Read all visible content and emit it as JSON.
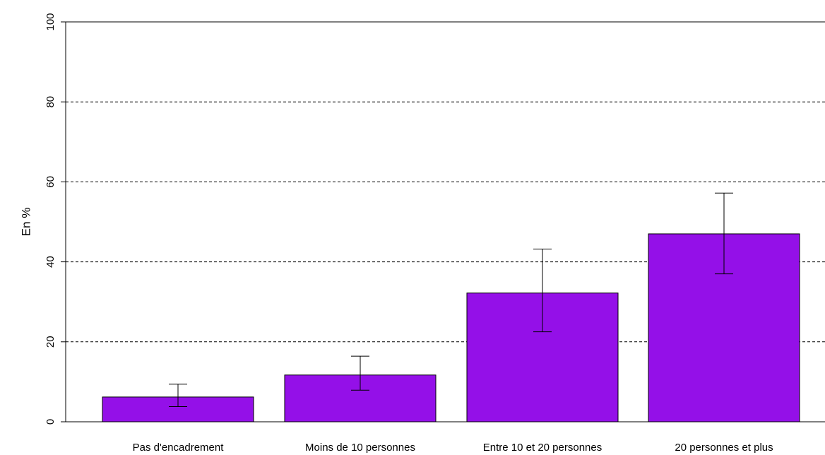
{
  "chart_data": {
    "type": "bar",
    "categories": [
      "Pas d'encadrement",
      "Moins de 10 personnes",
      "Entre 10 et 20 personnes",
      "20 personnes et plus"
    ],
    "values": [
      6.2,
      11.7,
      32.2,
      47.0
    ],
    "error_low": [
      3.8,
      7.9,
      22.5,
      37.0
    ],
    "error_high": [
      9.4,
      16.4,
      43.2,
      57.2
    ],
    "ylabel": "En %",
    "xlabel": "",
    "title": "",
    "ylim": [
      0,
      100
    ],
    "yticks": [
      "0",
      "20",
      "40",
      "60",
      "80",
      "100"
    ],
    "grid": "dashed horizontal",
    "bar_color": "#9410E8"
  }
}
